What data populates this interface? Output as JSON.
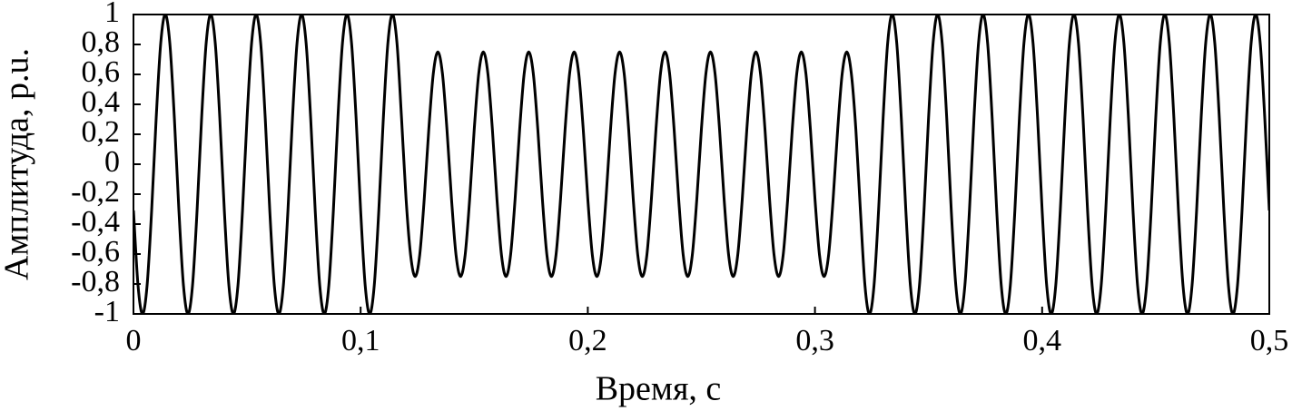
{
  "chart_data": {
    "type": "line",
    "x_label": "Время, с",
    "y_label": "Амплитуда, p.u.",
    "color": "#000000",
    "xlim": [
      0,
      0.5
    ],
    "ylim": [
      -1,
      1
    ],
    "xticks": [
      0,
      {
        "value": 0.1,
        "label": "0,1"
      },
      {
        "value": 0.2,
        "label": "0,2"
      },
      {
        "value": 0.3,
        "label": "0,3"
      },
      {
        "value": 0.4,
        "label": "0,4"
      },
      {
        "value": 0.5,
        "label": "0,5"
      }
    ],
    "yticks": [
      -1,
      {
        "value": -0.8,
        "label": "-0,8"
      },
      {
        "value": -0.6,
        "label": "-0,6"
      },
      {
        "value": -0.4,
        "label": "-0,4"
      },
      {
        "value": -0.2,
        "label": "-0,2"
      },
      0,
      {
        "value": 0.2,
        "label": "0,2"
      },
      {
        "value": 0.4,
        "label": "0,4"
      },
      {
        "value": 0.6,
        "label": "0,6"
      },
      {
        "value": 0.8,
        "label": "0,8"
      },
      1
    ],
    "grid": false,
    "x": [
      0,
      0.002,
      0.004,
      0.006,
      0.008,
      0.01,
      0.012,
      0.014,
      0.016,
      0.018,
      0.02,
      0.022,
      0.024,
      0.026,
      0.028,
      0.03,
      0.032,
      0.034,
      0.036,
      0.038,
      0.04,
      0.042,
      0.044,
      0.046,
      0.048,
      0.05,
      0.052,
      0.054,
      0.056,
      0.058,
      0.06,
      0.062,
      0.064,
      0.066,
      0.068,
      0.07,
      0.072,
      0.074,
      0.076,
      0.078,
      0.08,
      0.082,
      0.084,
      0.086,
      0.088,
      0.09,
      0.092,
      0.094,
      0.096,
      0.098,
      0.1,
      0.102,
      0.104,
      0.106,
      0.108,
      0.11,
      0.112,
      0.114,
      0.116,
      0.118,
      0.12,
      0.122,
      0.124,
      0.126,
      0.128,
      0.13,
      0.132,
      0.134,
      0.136,
      0.138,
      0.14,
      0.142,
      0.144,
      0.146,
      0.148,
      0.15,
      0.152,
      0.154,
      0.156,
      0.158,
      0.16,
      0.162,
      0.164,
      0.166,
      0.168,
      0.17,
      0.172,
      0.174,
      0.176,
      0.178,
      0.18,
      0.182,
      0.184,
      0.186,
      0.188,
      0.19,
      0.192,
      0.194,
      0.196,
      0.198,
      0.2,
      0.202,
      0.204,
      0.206,
      0.208,
      0.21,
      0.212,
      0.214,
      0.216,
      0.218,
      0.22,
      0.222,
      0.224,
      0.226,
      0.228,
      0.23,
      0.232,
      0.234,
      0.236,
      0.238,
      0.24,
      0.242,
      0.244,
      0.246,
      0.248,
      0.25,
      0.252,
      0.254,
      0.256,
      0.258,
      0.26,
      0.262,
      0.264,
      0.266,
      0.268,
      0.27,
      0.272,
      0.274,
      0.276,
      0.278,
      0.28,
      0.282,
      0.284,
      0.286,
      0.288,
      0.29,
      0.292,
      0.294,
      0.296,
      0.298,
      0.3,
      0.302,
      0.304,
      0.306,
      0.308,
      0.31,
      0.312,
      0.314,
      0.316,
      0.318,
      0.32,
      0.322,
      0.324,
      0.326,
      0.328,
      0.33,
      0.332,
      0.334,
      0.336,
      0.338,
      0.34,
      0.342,
      0.344,
      0.346,
      0.348,
      0.35,
      0.352,
      0.354,
      0.356,
      0.358,
      0.36,
      0.362,
      0.364,
      0.366,
      0.368,
      0.37,
      0.372,
      0.374,
      0.376,
      0.378,
      0.38,
      0.382,
      0.384,
      0.386,
      0.388,
      0.39,
      0.392,
      0.394,
      0.396,
      0.398,
      0.4,
      0.402,
      0.404,
      0.406,
      0.408,
      0.41,
      0.412,
      0.414,
      0.416,
      0.418,
      0.42,
      0.422,
      0.424,
      0.426,
      0.428,
      0.43,
      0.432,
      0.434,
      0.436,
      0.438,
      0.44,
      0.442,
      0.444,
      0.446,
      0.448,
      0.45,
      0.452,
      0.454,
      0.456,
      0.458,
      0.46,
      0.462,
      0.464,
      0.466,
      0.468,
      0.47,
      0.472,
      0.474,
      0.476,
      0.478,
      0.48,
      0.482,
      0.484,
      0.486,
      0.488,
      0.49,
      0.492,
      0.494,
      0.496,
      0.498,
      0.5
    ],
    "values": [
      -0.309,
      -0.809,
      -1,
      -0.809,
      -0.309,
      0.309,
      0.809,
      1,
      0.809,
      0.309,
      -0.309,
      -0.809,
      -1,
      -0.809,
      -0.309,
      0.309,
      0.809,
      1,
      0.809,
      0.309,
      -0.309,
      -0.809,
      -1,
      -0.809,
      -0.309,
      0.309,
      0.809,
      1,
      0.809,
      0.309,
      -0.309,
      -0.809,
      -1,
      -0.809,
      -0.309,
      0.309,
      0.809,
      1,
      0.809,
      0.309,
      -0.309,
      -0.809,
      -1,
      -0.809,
      -0.309,
      0.309,
      0.809,
      1,
      0.809,
      0.309,
      -0.309,
      -0.809,
      -1,
      -0.809,
      -0.309,
      0.309,
      0.809,
      1,
      0.809,
      0.309,
      -0.232,
      -0.607,
      -0.75,
      -0.607,
      -0.232,
      0.232,
      0.607,
      0.75,
      0.607,
      0.232,
      -0.232,
      -0.607,
      -0.75,
      -0.607,
      -0.232,
      0.232,
      0.607,
      0.75,
      0.607,
      0.232,
      -0.232,
      -0.607,
      -0.75,
      -0.607,
      -0.232,
      0.232,
      0.607,
      0.75,
      0.607,
      0.232,
      -0.232,
      -0.607,
      -0.75,
      -0.607,
      -0.232,
      0.232,
      0.607,
      0.75,
      0.607,
      0.232,
      -0.232,
      -0.607,
      -0.75,
      -0.607,
      -0.232,
      0.232,
      0.607,
      0.75,
      0.607,
      0.232,
      -0.232,
      -0.607,
      -0.75,
      -0.607,
      -0.232,
      0.232,
      0.607,
      0.75,
      0.607,
      0.232,
      -0.232,
      -0.607,
      -0.75,
      -0.607,
      -0.232,
      0.232,
      0.607,
      0.75,
      0.607,
      0.232,
      -0.232,
      -0.607,
      -0.75,
      -0.607,
      -0.232,
      0.232,
      0.607,
      0.75,
      0.607,
      0.232,
      -0.232,
      -0.607,
      -0.75,
      -0.607,
      -0.232,
      0.232,
      0.607,
      0.75,
      0.607,
      0.232,
      -0.232,
      -0.607,
      -0.75,
      -0.607,
      -0.232,
      0.232,
      0.607,
      0.75,
      0.607,
      0.232,
      -0.309,
      -0.809,
      -1,
      -0.809,
      -0.309,
      0.309,
      0.809,
      1,
      0.809,
      0.309,
      -0.309,
      -0.809,
      -1,
      -0.809,
      -0.309,
      0.309,
      0.809,
      1,
      0.809,
      0.309,
      -0.309,
      -0.809,
      -1,
      -0.809,
      -0.309,
      0.309,
      0.809,
      1,
      0.809,
      0.309,
      -0.309,
      -0.809,
      -1,
      -0.809,
      -0.309,
      0.309,
      0.809,
      1,
      0.809,
      0.309,
      -0.309,
      -0.809,
      -1,
      -0.809,
      -0.309,
      0.309,
      0.809,
      1,
      0.809,
      0.309,
      -0.309,
      -0.809,
      -1,
      -0.809,
      -0.309,
      0.309,
      0.809,
      1,
      0.809,
      0.309,
      -0.309,
      -0.809,
      -1,
      -0.809,
      -0.309,
      0.309,
      0.809,
      1,
      0.809,
      0.309,
      -0.309,
      -0.809,
      -1,
      -0.809,
      -0.309,
      0.309,
      0.809,
      1,
      0.809,
      0.309,
      -0.309,
      -0.809,
      -1,
      -0.809,
      -0.309,
      0.309,
      0.809,
      1,
      0.809,
      0.309,
      -0.309
    ]
  }
}
